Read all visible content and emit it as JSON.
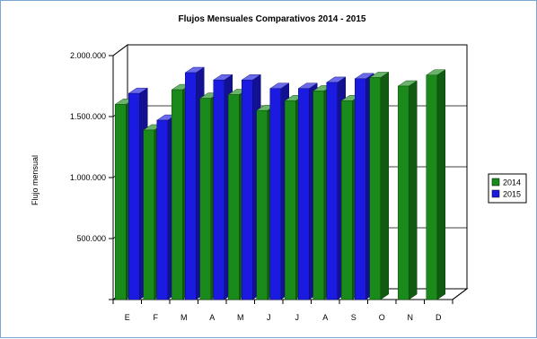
{
  "chart_data": {
    "type": "bar",
    "title": "Flujos Mensuales Comparativos 2014 - 2015",
    "ylabel": "Flujo mensual",
    "xlabel": "",
    "categories": [
      "E",
      "F",
      "M",
      "A",
      "M",
      "J",
      "J",
      "A",
      "S",
      "O",
      "N",
      "D"
    ],
    "yticks": [
      "2.000.000",
      "1.500.000",
      "1.000.000",
      "500.000"
    ],
    "ytick_values": [
      2000000,
      1500000,
      1000000,
      500000
    ],
    "ylim": [
      0,
      2000000
    ],
    "grid": true,
    "legend_position": "right",
    "series": [
      {
        "name": "2014",
        "color": "#1a8a1a",
        "values": [
          1600000,
          1390000,
          1720000,
          1650000,
          1680000,
          1550000,
          1630000,
          1710000,
          1630000,
          1820000,
          1750000,
          1840000
        ]
      },
      {
        "name": "2015",
        "color": "#1a1ae0",
        "values": [
          1690000,
          1470000,
          1860000,
          1800000,
          1800000,
          1730000,
          1730000,
          1780000,
          1810000,
          null,
          null,
          null
        ]
      }
    ]
  }
}
